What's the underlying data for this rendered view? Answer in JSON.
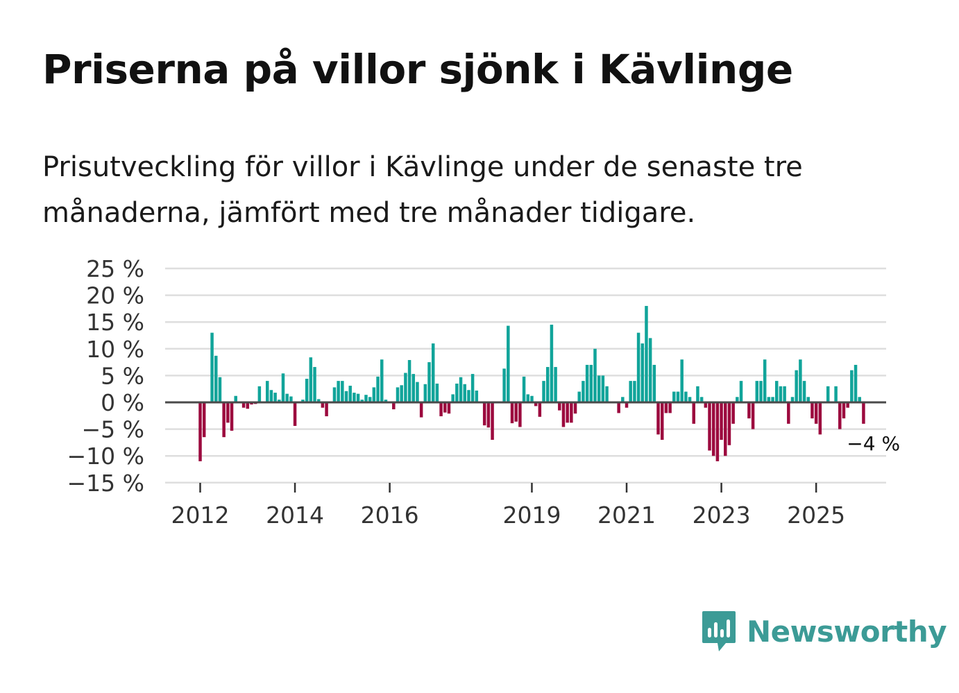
{
  "title": "Priserna på villor sjönk i Kävlinge",
  "subtitle": "Prisutveckling för villor i Kävlinge under de senaste tre månaderna, jämfört med tre månader tidigare.",
  "brand": "Newsworthy",
  "colors": {
    "positive": "#11a49a",
    "negative": "#9c0a3e",
    "grid": "#dedede",
    "zero": "#4a4a4a",
    "brand": "#3c9b96"
  },
  "chart_data": {
    "type": "bar",
    "title": "Priserna på villor sjönk i Kävlinge",
    "xlabel": "",
    "ylabel": "",
    "ylim": [
      -15,
      25
    ],
    "yticks": [
      25,
      20,
      15,
      10,
      5,
      0,
      -5,
      -10,
      -15
    ],
    "ytick_labels": [
      "25 %",
      "20 %",
      "15 %",
      "10 %",
      "5 %",
      "0 %",
      "−5 %",
      "−10 %",
      "−15 %"
    ],
    "xticks": [
      {
        "label": "2012",
        "month_index": 0
      },
      {
        "label": "2014",
        "month_index": 24
      },
      {
        "label": "2016",
        "month_index": 48
      },
      {
        "label": "2019",
        "month_index": 84
      },
      {
        "label": "2021",
        "month_index": 108
      },
      {
        "label": "2023",
        "month_index": 132
      },
      {
        "label": "2025",
        "month_index": 156
      }
    ],
    "x_start": "2012-01",
    "grid": true,
    "series": [
      {
        "name": "Prisutveckling",
        "values": [
          -11,
          -6.5,
          null,
          13,
          8.7,
          4.7,
          -6.5,
          -3.8,
          -5.3,
          1.2,
          null,
          -1,
          -1.2,
          -0.4,
          -0.3,
          3,
          null,
          4,
          2.3,
          1.8,
          0.5,
          5.4,
          1.6,
          1.1,
          -4.4,
          null,
          0.5,
          4.4,
          8.4,
          6.6,
          0.6,
          -1,
          -2.6,
          null,
          2.8,
          4,
          4,
          2.1,
          3.1,
          1.8,
          1.6,
          0.5,
          1.4,
          1,
          2.8,
          4.8,
          8,
          0.5,
          null,
          -1.3,
          2.8,
          3.2,
          5.5,
          7.9,
          5.3,
          3.8,
          -2.8,
          3.4,
          7.5,
          11,
          3.5,
          -2.6,
          -1.9,
          -2.1,
          1.5,
          3.5,
          4.7,
          3.4,
          2.3,
          5.3,
          2.2,
          null,
          -4.3,
          -4.7,
          -7,
          null,
          null,
          6.3,
          14.3,
          -3.9,
          -3.6,
          -4.6,
          4.8,
          1.5,
          1.2,
          -0.7,
          -2.7,
          4,
          6.6,
          14.5,
          6.6,
          -1.5,
          -4.6,
          -3.8,
          -3.8,
          -2.1,
          2,
          4,
          7,
          7,
          10,
          5,
          5,
          3,
          null,
          null,
          -2,
          1,
          -1,
          4,
          4,
          13,
          11,
          18,
          12,
          7,
          -6,
          -7,
          -2,
          -2,
          2,
          2,
          8,
          2,
          1,
          -4,
          3,
          1,
          -1,
          -9,
          -10,
          -11,
          -7,
          -10,
          -8,
          -4,
          1,
          4,
          null,
          -3,
          -5,
          4,
          4,
          8,
          1,
          1,
          4,
          3,
          3,
          -4,
          1,
          6,
          8,
          4,
          1,
          -3,
          -4,
          -6,
          null,
          3,
          null,
          3,
          -5,
          -3,
          -1,
          6,
          7,
          1,
          -4
        ]
      }
    ],
    "annotations": [
      {
        "text": "−4 %",
        "month_index": 164,
        "value": -4
      }
    ]
  }
}
